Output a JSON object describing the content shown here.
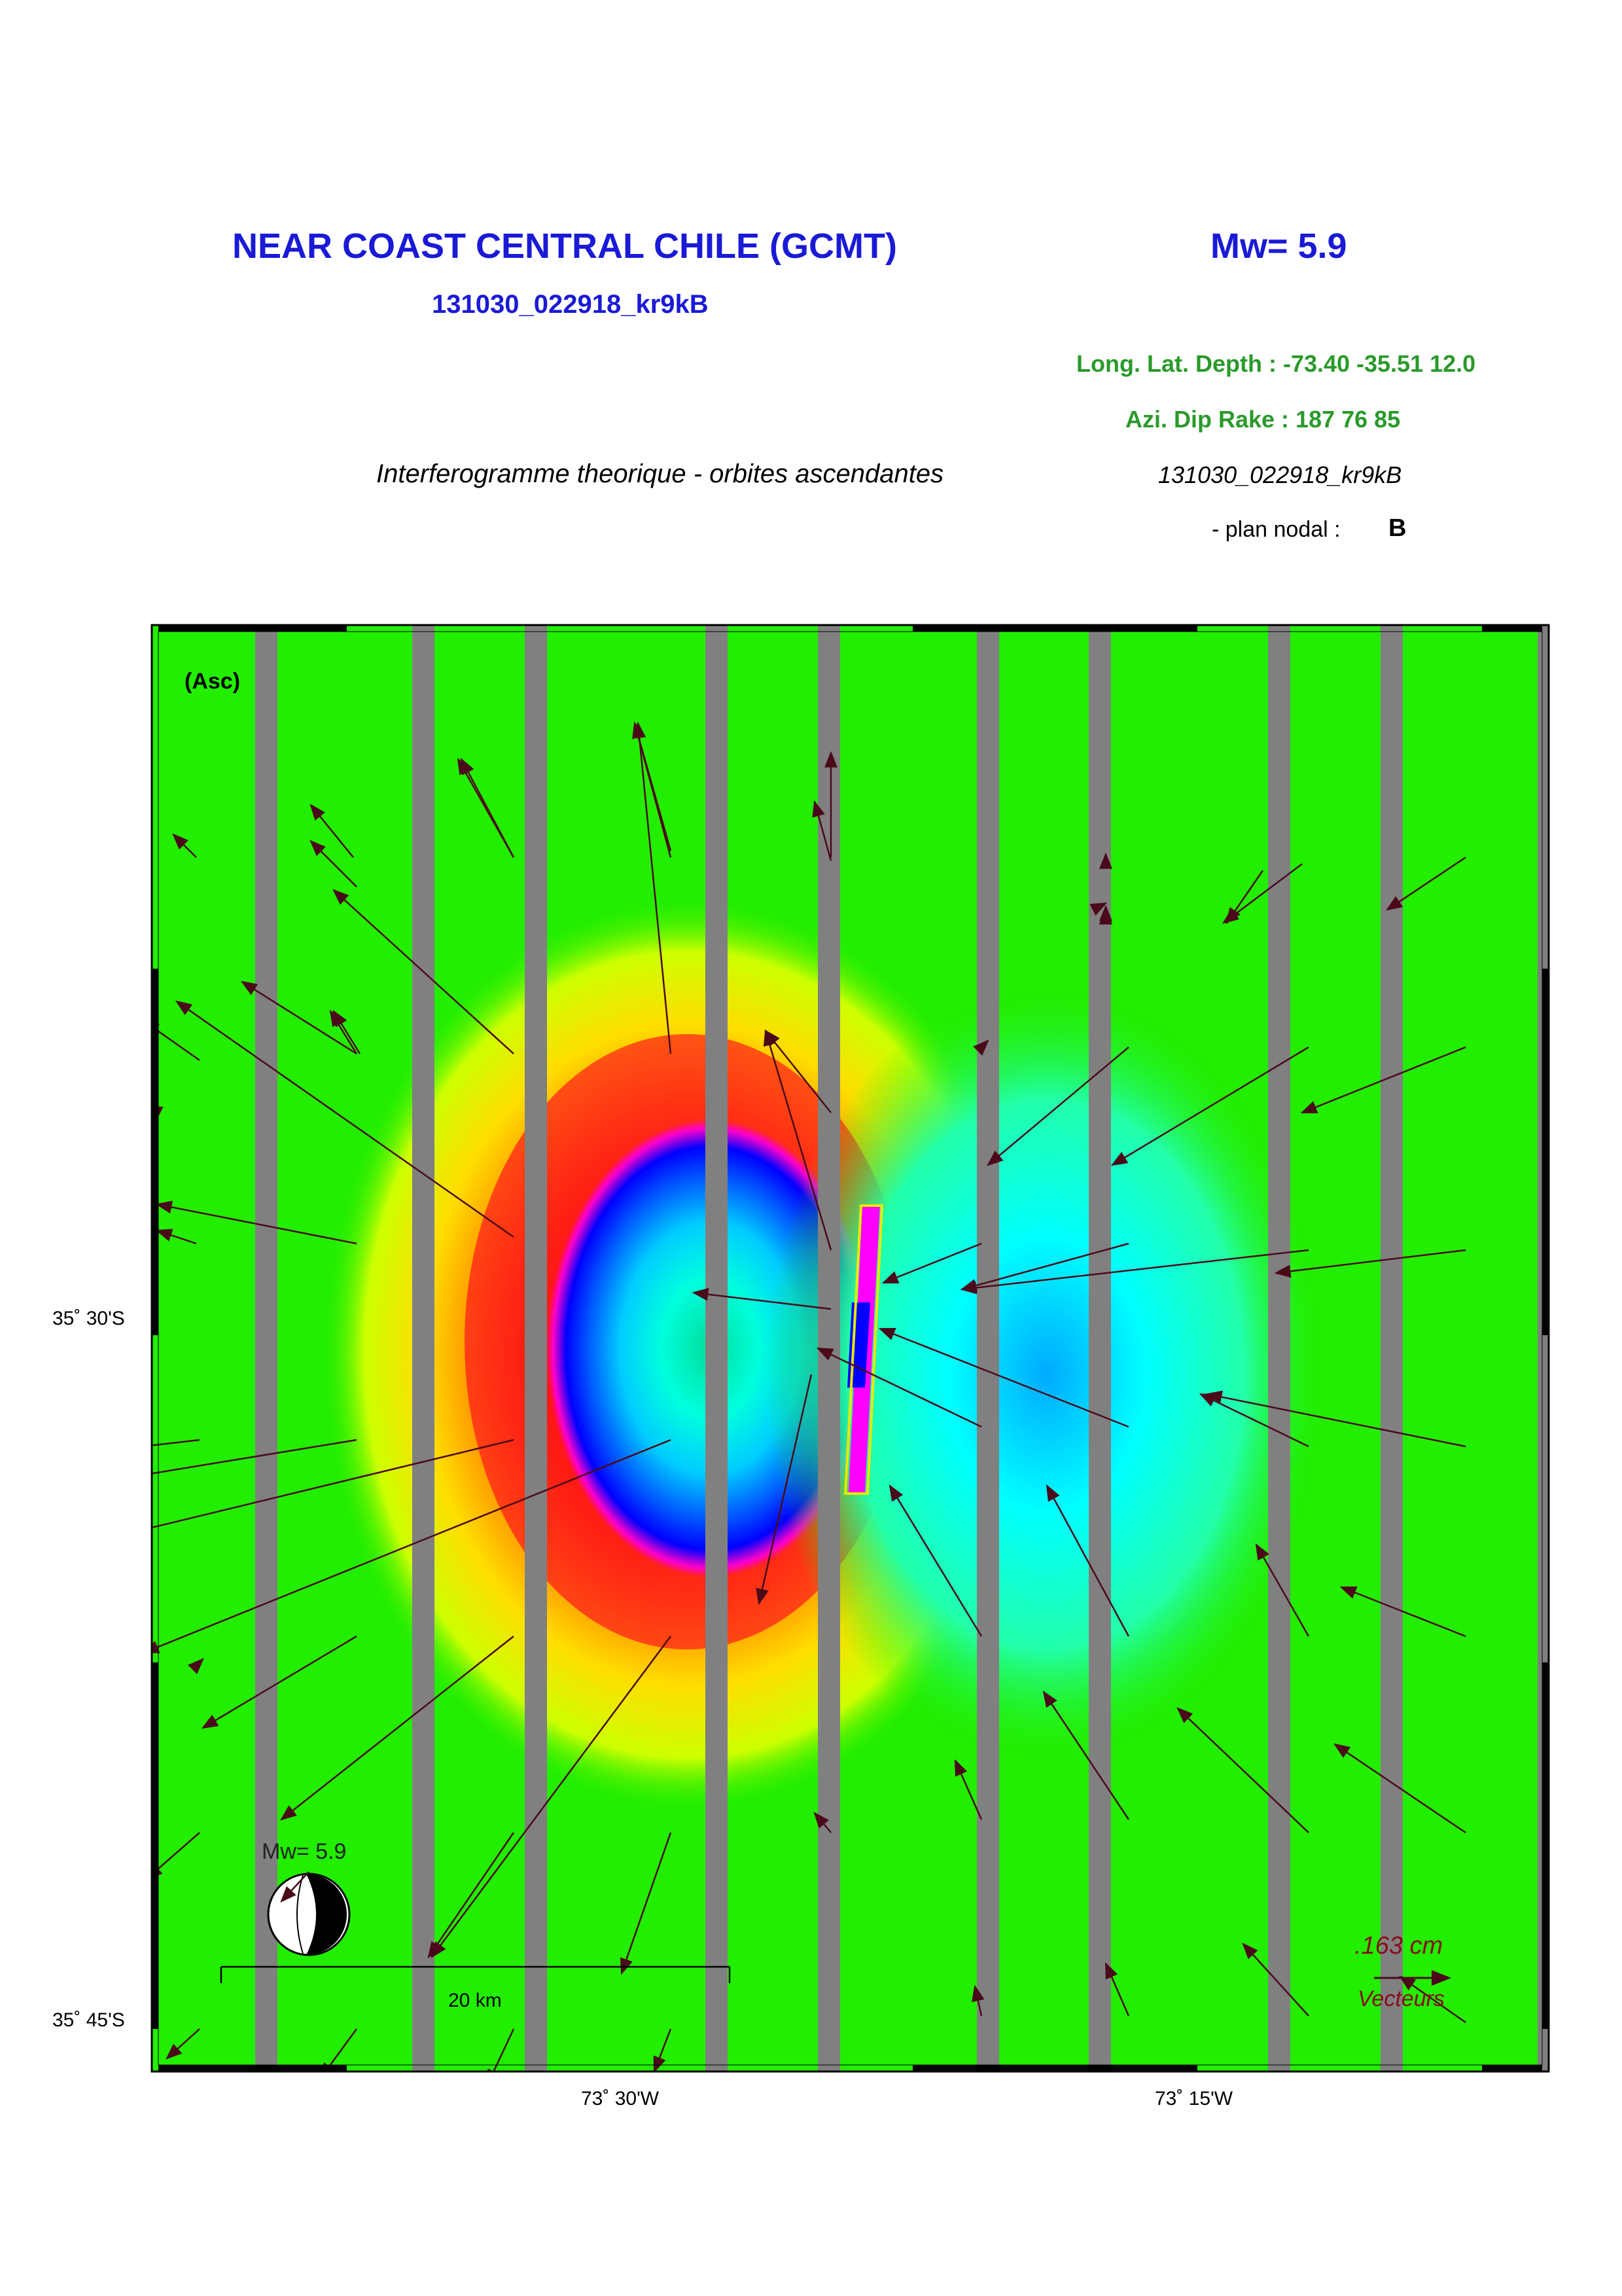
{
  "header": {
    "title": "NEAR COAST CENTRAL CHILE (GCMT)",
    "magnitude": "Mw= 5.9",
    "event_id": "131030_022918_kr9kB",
    "location_line": "Long. Lat. Depth : -73.40 -35.51 12.0",
    "mechanism_line": "Azi.  Dip   Rake :  187 76 85",
    "figure_caption": "Interferogramme theorique - orbites ascendantes",
    "event_id_italic": "131030_022918_kr9kB",
    "nodal_plane_label": "- plan nodal :",
    "nodal_plane_value": "B"
  },
  "map": {
    "mode_label": "(Asc)",
    "lat_labels": [
      "35˚ 30'S",
      "35˚ 45'S"
    ],
    "lon_labels": [
      "73˚ 30'W",
      "73˚ 15'W"
    ],
    "beachball_label": "Mw= 5.9",
    "scalebar_label": "20 km",
    "vector_scale_value": ".163  cm",
    "vector_scale_label": "Vecteurs",
    "colors": {
      "background_green": "#22ee00",
      "stripe_gray": "#808080",
      "arrow": "#4a0a1a",
      "fault_outline": "#e8e800"
    }
  }
}
